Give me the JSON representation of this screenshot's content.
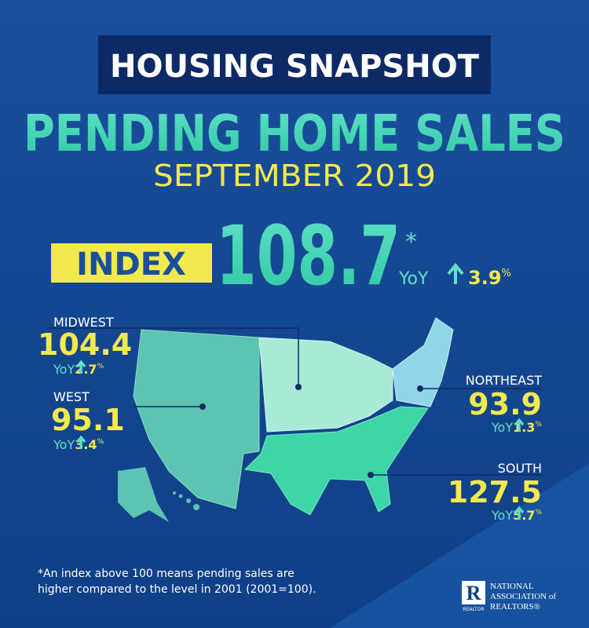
{
  "header": {
    "kicker": "HOUSING SNAPSHOT",
    "title": "PENDING HOME SALES",
    "period": "SEPTEMBER 2019"
  },
  "index": {
    "label": "INDEX",
    "value": "108.7",
    "note_mark": "*",
    "yoy_label": "YoY",
    "yoy_change": "3.9",
    "unit": "%"
  },
  "regions": [
    {
      "name": "MIDWEST",
      "value": "104.4",
      "yoy_label": "YoY",
      "yoy_change": "2.7",
      "unit": "%"
    },
    {
      "name": "WEST",
      "value": "95.1",
      "yoy_label": "YoY",
      "yoy_change": "3.4",
      "unit": "%"
    },
    {
      "name": "NORTHEAST",
      "value": "93.9",
      "yoy_label": "YoY",
      "yoy_change": "1.3",
      "unit": "%"
    },
    {
      "name": "SOUTH",
      "value": "127.5",
      "yoy_label": "YoY",
      "yoy_change": "5.7",
      "unit": "%"
    }
  ],
  "footnote": [
    "*An index above 100 means pending sales are",
    "higher compared to the level in 2001 (2001=100)."
  ],
  "logo": {
    "mark": "R",
    "caption": "REALTOR",
    "lines": [
      "NATIONAL",
      "ASSOCIATION of",
      "REALTORS®"
    ]
  }
}
